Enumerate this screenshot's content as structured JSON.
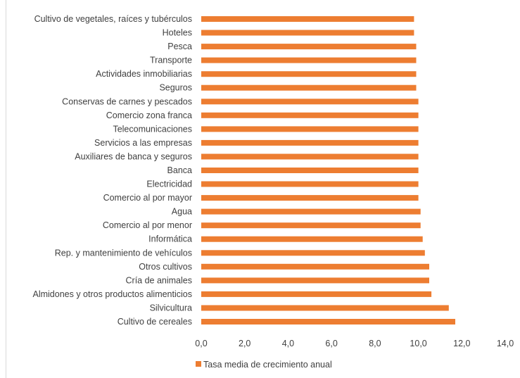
{
  "chart_data": {
    "type": "bar",
    "orientation": "horizontal",
    "categories": [
      "Cultivo de vegetales, raíces y tubérculos",
      "Hoteles",
      "Pesca",
      "Transporte",
      "Actividades inmobiliarias",
      "Seguros",
      "Conservas de carnes y pescados",
      "Comercio zona franca",
      "Telecomunicaciones",
      "Servicios a las empresas",
      "Auxiliares de banca y seguros",
      "Banca",
      "Electricidad",
      "Comercio al por mayor",
      "Agua",
      "Comercio al por menor",
      "Informática",
      "Rep. y mantenimiento de vehículos",
      "Otros cultivos",
      "Cría de animales",
      "Almidones y otros productos alimenticios",
      "Silvicultura",
      "Cultivo de cereales"
    ],
    "series": [
      {
        "name": "Tasa media de crecimiento anual",
        "color": "#ED7D31",
        "values": [
          9.8,
          9.8,
          9.9,
          9.9,
          9.9,
          9.9,
          10.0,
          10.0,
          10.0,
          10.0,
          10.0,
          10.0,
          10.0,
          10.0,
          10.1,
          10.1,
          10.2,
          10.3,
          10.5,
          10.5,
          10.6,
          11.4,
          11.7
        ]
      }
    ],
    "xlim": [
      0,
      14
    ],
    "ticks": [
      "0,0",
      "2,0",
      "4,0",
      "6,0",
      "8,0",
      "10,0",
      "12,0",
      "14,0"
    ],
    "grid": false,
    "legend_position": "bottom-left"
  }
}
